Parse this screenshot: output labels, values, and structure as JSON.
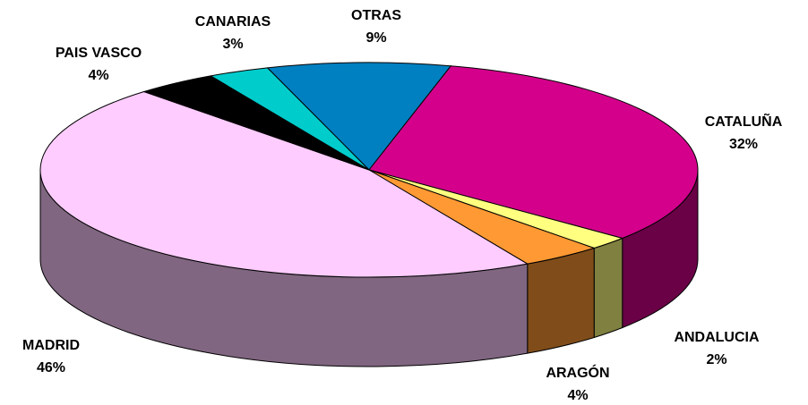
{
  "chart_data": {
    "type": "pie3d",
    "categories": [
      "OTRAS",
      "CATALUÑA",
      "ANDALUCIA",
      "ARAGÓN",
      "MADRID",
      "PAIS VASCO",
      "CANARIAS"
    ],
    "values": [
      9,
      32,
      2,
      4,
      46,
      4,
      3
    ],
    "value_labels": [
      "9%",
      "32%",
      "2%",
      "4%",
      "46%",
      "4%",
      "3%"
    ],
    "colors": [
      "#0080c0",
      "#d4008c",
      "#ffff80",
      "#ff9933",
      "#ffccff",
      "#000000",
      "#00cccc"
    ]
  }
}
